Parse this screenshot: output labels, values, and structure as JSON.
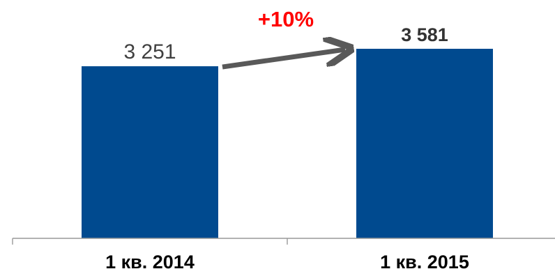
{
  "chart_data": {
    "type": "bar",
    "title": "",
    "xlabel": "",
    "ylabel": "",
    "ylim": [
      0,
      3581
    ],
    "categories": [
      "1 кв. 2014",
      "1 кв. 2015"
    ],
    "series": [
      {
        "values": [
          3251,
          3581
        ],
        "value_labels": [
          "3 251",
          "3 581"
        ]
      }
    ],
    "annotations": [
      {
        "text": "+10%",
        "color": "#ff0000",
        "kind": "growth-arrow"
      }
    ],
    "colors": {
      "bar": "#004a8f",
      "arrow": "#595959",
      "axis": "#999999",
      "label_first": "#404040",
      "label_last": "#333333",
      "growth": "#ff0000",
      "title_fragment": "#1f9fdc"
    }
  }
}
